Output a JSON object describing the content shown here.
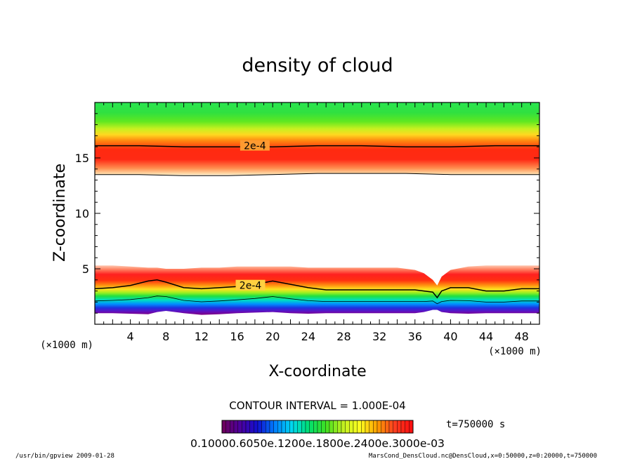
{
  "chart_data": {
    "type": "heatmap",
    "title": "density of cloud",
    "xlabel": "X-coordinate",
    "ylabel": "Z-coordinate",
    "x_unit_left": "(×1000 m)",
    "x_unit_right": "(×1000 m)",
    "xlim": [
      0,
      50
    ],
    "ylim": [
      0,
      20
    ],
    "x_ticks": [
      4,
      8,
      12,
      16,
      20,
      24,
      28,
      32,
      36,
      40,
      44,
      48
    ],
    "y_ticks": [
      5,
      10,
      15
    ],
    "contour_labels": [
      {
        "text": "2e-4",
        "x": 18,
        "z": 16.1
      },
      {
        "text": "2e-4",
        "x": 17.5,
        "z": 3.5
      }
    ],
    "contour_interval": "CONTOUR INTERVAL = 1.000E-04",
    "time_label": "t=750000 s",
    "colorbar_labels": "0.10000.6050e.1200e.1800e.2400e.3000e-03",
    "upper_layer": {
      "top_km": 20,
      "bottom_km": [
        13.5,
        13.5,
        13.4,
        13.4,
        13.5,
        13.6,
        13.6,
        13.6,
        13.5,
        13.5,
        13.5
      ],
      "contour_2e4_km": [
        16.1,
        16.1,
        16.0,
        16.0,
        16.0,
        16.1,
        16.1,
        16.0,
        16.0,
        16.1,
        16.1
      ]
    },
    "lower_layer": {
      "x_km": [
        0,
        2,
        4,
        6,
        7,
        8,
        10,
        12,
        14,
        16,
        18,
        20,
        22,
        24,
        26,
        28,
        30,
        32,
        34,
        36,
        37,
        38,
        38.5,
        39,
        40,
        42,
        44,
        46,
        48,
        50
      ],
      "top_km": [
        5.3,
        5.3,
        5.2,
        5.1,
        5.1,
        5.0,
        5.0,
        5.1,
        5.1,
        5.2,
        5.2,
        5.2,
        5.2,
        5.1,
        5.1,
        5.1,
        5.1,
        5.1,
        5.1,
        4.9,
        4.6,
        4.0,
        3.5,
        4.3,
        4.9,
        5.2,
        5.3,
        5.3,
        5.3,
        5.3
      ],
      "contour_2e4_km": [
        3.2,
        3.3,
        3.5,
        3.9,
        4.0,
        3.8,
        3.3,
        3.2,
        3.3,
        3.4,
        3.6,
        3.9,
        3.6,
        3.3,
        3.1,
        3.1,
        3.1,
        3.1,
        3.1,
        3.1,
        3.0,
        2.9,
        2.4,
        3.0,
        3.3,
        3.3,
        3.0,
        3.0,
        3.2,
        3.2
      ],
      "base_km": [
        1.0,
        1.0,
        0.95,
        0.9,
        1.1,
        1.2,
        1.0,
        0.85,
        0.9,
        1.0,
        1.05,
        1.1,
        1.0,
        0.95,
        1.0,
        1.0,
        1.0,
        1.0,
        1.0,
        1.0,
        1.1,
        1.3,
        1.3,
        1.1,
        1.0,
        0.95,
        1.0,
        1.0,
        1.0,
        1.0
      ]
    }
  },
  "footer": {
    "left": "/usr/bin/gpview  2009-01-28",
    "right": "MarsCond_DensCloud.nc@DensCloud,x=0:50000,z=0:20000,t=750000"
  },
  "colors": {
    "scale": [
      "#6b0060",
      "#4a00a0",
      "#1010d0",
      "#0080ff",
      "#00d8f0",
      "#00e070",
      "#40e020",
      "#c0f020",
      "#ffff20",
      "#ffa000",
      "#ff4020",
      "#ff1010"
    ]
  }
}
